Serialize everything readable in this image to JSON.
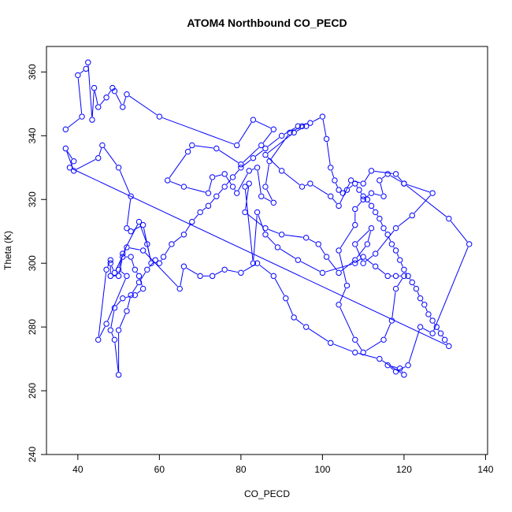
{
  "chart_data": {
    "type": "line",
    "title": "ATOM4 Northbound CO_PECD",
    "xlabel": "CO_PECD",
    "ylabel": "Theta (K)",
    "xlim": [
      32.3,
      140.5
    ],
    "ylim": [
      240,
      368
    ],
    "x_ticks": [
      40,
      60,
      80,
      100,
      120,
      140
    ],
    "y_ticks": [
      240,
      260,
      280,
      300,
      320,
      340,
      360
    ],
    "grid": false,
    "legend": "none",
    "marker": "open-circle",
    "colors": {
      "series": "#0000ff",
      "axis": "#000000",
      "background": "#ffffff"
    },
    "series": [
      {
        "points": [
          [
            37,
            342
          ],
          [
            41,
            346
          ],
          [
            40,
            359
          ],
          [
            42,
            361
          ],
          [
            42.5,
            363
          ],
          [
            43.5,
            345
          ],
          [
            44,
            355
          ],
          [
            45,
            349
          ],
          [
            47,
            352
          ],
          [
            48.5,
            355
          ],
          [
            49,
            354
          ],
          [
            51,
            349
          ],
          [
            52,
            353
          ],
          [
            60,
            346
          ],
          [
            79,
            337
          ],
          [
            83,
            345
          ],
          [
            88,
            342
          ],
          [
            85,
            337
          ],
          [
            80,
            331
          ],
          [
            74,
            336
          ],
          [
            68,
            337
          ],
          [
            67,
            335
          ],
          [
            62,
            326
          ],
          [
            66,
            324
          ],
          [
            72,
            322
          ],
          [
            73,
            327
          ],
          [
            76,
            328
          ],
          [
            78,
            324
          ],
          [
            79,
            322
          ],
          [
            82,
            329
          ],
          [
            84,
            330
          ],
          [
            85,
            321
          ],
          [
            88,
            319
          ],
          [
            86,
            324
          ],
          [
            87,
            332
          ],
          [
            92,
            341
          ],
          [
            95,
            343
          ],
          [
            96,
            343
          ],
          [
            93,
            341
          ],
          [
            86,
            334
          ],
          [
            90,
            329
          ],
          [
            95,
            324
          ],
          [
            97,
            325
          ],
          [
            102,
            321
          ],
          [
            104,
            318
          ],
          [
            107,
            326
          ],
          [
            110,
            325
          ],
          [
            112,
            329
          ],
          [
            118,
            328
          ],
          [
            120,
            325
          ],
          [
            127,
            322
          ],
          [
            122,
            315
          ],
          [
            118,
            311
          ],
          [
            113,
            303
          ],
          [
            110,
            300
          ],
          [
            108,
            306
          ],
          [
            112,
            311
          ],
          [
            111,
            306
          ],
          [
            108,
            301
          ],
          [
            104,
            297
          ],
          [
            101,
            302
          ],
          [
            99,
            306
          ],
          [
            96,
            308
          ],
          [
            90,
            309
          ],
          [
            86,
            311
          ],
          [
            81,
            316
          ],
          [
            82,
            325
          ],
          [
            81,
            324
          ],
          [
            83,
            300
          ],
          [
            84,
            316
          ],
          [
            86,
            309
          ],
          [
            89,
            305
          ],
          [
            94,
            301
          ],
          [
            100,
            297
          ],
          [
            108,
            300
          ],
          [
            110,
            302
          ],
          [
            113,
            299
          ],
          [
            116,
            296
          ],
          [
            118,
            296
          ],
          [
            120,
            296
          ],
          [
            118,
            292
          ],
          [
            117,
            282
          ],
          [
            115,
            276
          ],
          [
            110,
            272
          ],
          [
            108,
            276
          ],
          [
            104,
            287
          ],
          [
            106,
            293
          ],
          [
            104,
            304
          ],
          [
            108,
            312
          ],
          [
            108,
            317
          ],
          [
            110,
            320
          ],
          [
            112,
            322
          ],
          [
            115,
            321
          ],
          [
            114,
            326
          ],
          [
            116,
            328
          ],
          [
            120,
            325
          ],
          [
            131,
            314
          ],
          [
            136,
            306
          ],
          [
            127,
            278
          ],
          [
            124,
            280
          ],
          [
            121,
            268
          ],
          [
            118,
            266
          ],
          [
            116,
            268
          ],
          [
            119,
            267
          ],
          [
            120,
            265
          ],
          [
            114,
            270
          ],
          [
            108,
            272
          ],
          [
            102,
            275
          ],
          [
            96,
            280
          ],
          [
            93,
            283
          ],
          [
            91,
            289
          ],
          [
            88,
            296
          ],
          [
            84,
            300
          ],
          [
            80,
            297
          ],
          [
            76,
            298
          ],
          [
            73,
            296
          ],
          [
            70,
            296
          ],
          [
            66,
            299
          ],
          [
            65,
            292
          ],
          [
            56,
            304
          ],
          [
            52,
            305
          ],
          [
            49,
            297
          ],
          [
            48,
            300
          ],
          [
            48,
            296
          ],
          [
            50,
            296
          ],
          [
            51,
            302
          ],
          [
            53,
            302
          ],
          [
            54,
            298
          ],
          [
            55,
            296
          ],
          [
            56,
            292
          ],
          [
            54,
            290
          ],
          [
            51,
            289
          ],
          [
            49,
            286
          ],
          [
            48,
            279
          ],
          [
            49,
            276
          ],
          [
            50,
            265
          ],
          [
            50,
            279
          ],
          [
            52,
            285
          ],
          [
            53,
            290
          ],
          [
            55,
            294
          ],
          [
            57,
            298
          ],
          [
            59,
            301
          ],
          [
            60,
            300
          ],
          [
            61,
            302
          ],
          [
            63,
            306
          ],
          [
            66,
            309
          ],
          [
            68,
            313
          ],
          [
            70,
            316
          ],
          [
            72,
            318
          ],
          [
            74,
            321
          ],
          [
            76,
            324
          ],
          [
            78,
            327
          ],
          [
            80,
            330
          ],
          [
            83,
            333
          ],
          [
            86,
            336
          ],
          [
            90,
            340
          ],
          [
            94,
            343
          ],
          [
            97,
            344
          ],
          [
            100,
            346
          ],
          [
            101,
            339
          ],
          [
            102,
            330
          ],
          [
            103,
            326
          ],
          [
            104,
            323
          ],
          [
            105,
            322
          ],
          [
            106,
            323
          ],
          [
            108,
            325
          ],
          [
            109,
            323
          ],
          [
            110,
            321
          ],
          [
            111,
            320
          ],
          [
            112,
            318
          ],
          [
            113,
            316
          ],
          [
            114,
            314
          ],
          [
            115,
            311
          ],
          [
            116,
            309
          ],
          [
            117,
            306
          ],
          [
            118,
            304
          ],
          [
            119,
            301
          ],
          [
            120,
            298
          ],
          [
            121,
            296
          ],
          [
            122,
            294
          ],
          [
            123,
            292
          ],
          [
            124,
            289
          ],
          [
            125,
            287
          ],
          [
            126,
            284
          ],
          [
            127,
            282
          ],
          [
            128,
            280
          ],
          [
            129,
            278
          ],
          [
            130,
            276
          ],
          [
            131,
            274
          ],
          [
            38,
            330
          ],
          [
            39,
            332
          ],
          [
            37,
            336
          ],
          [
            39,
            329
          ],
          [
            45,
            333
          ],
          [
            46,
            337
          ],
          [
            50,
            330
          ],
          [
            53,
            321
          ],
          [
            52,
            311
          ],
          [
            53,
            310
          ],
          [
            56,
            312
          ],
          [
            58,
            300
          ],
          [
            57,
            306
          ],
          [
            55,
            313
          ],
          [
            51,
            303
          ],
          [
            50,
            298
          ],
          [
            52,
            296
          ],
          [
            47,
            281
          ],
          [
            45,
            276
          ],
          [
            47,
            298
          ],
          [
            48,
            301
          ]
        ]
      }
    ]
  }
}
